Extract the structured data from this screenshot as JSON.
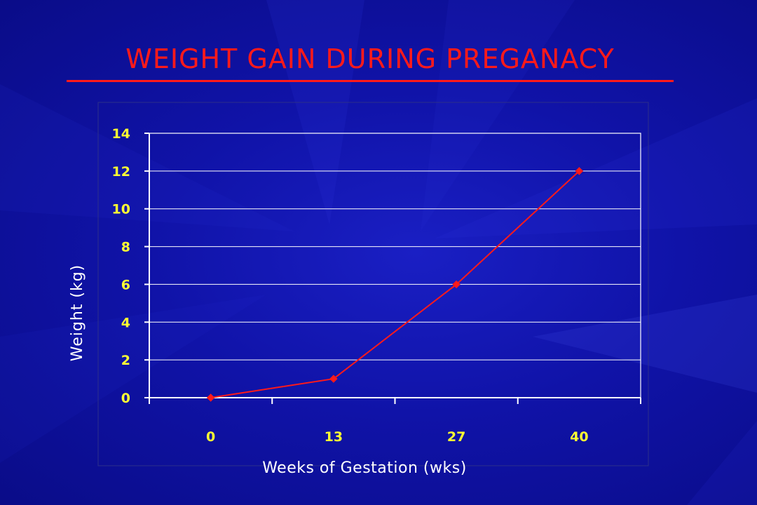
{
  "slide": {
    "title": "WEIGHT GAIN DURING PREGANACY"
  },
  "colors": {
    "background": "#1013a8",
    "title": "#ff1a1a",
    "series": "#ff1a1a",
    "tick_labels": "#ffff33",
    "axis_labels": "#ffffff",
    "axes": "#ffffff"
  },
  "chart_data": {
    "type": "line",
    "title": "",
    "xlabel": "Weeks of Gestation (wks)",
    "ylabel": "Weight (kg)",
    "categories": [
      "0",
      "13",
      "27",
      "40"
    ],
    "y_ticks": [
      0,
      2,
      4,
      6,
      8,
      10,
      12,
      14
    ],
    "ylim": [
      0,
      14
    ],
    "grid": true,
    "legend": "none",
    "series": [
      {
        "values": [
          0,
          1,
          6,
          12
        ],
        "marker": "diamond"
      }
    ]
  }
}
